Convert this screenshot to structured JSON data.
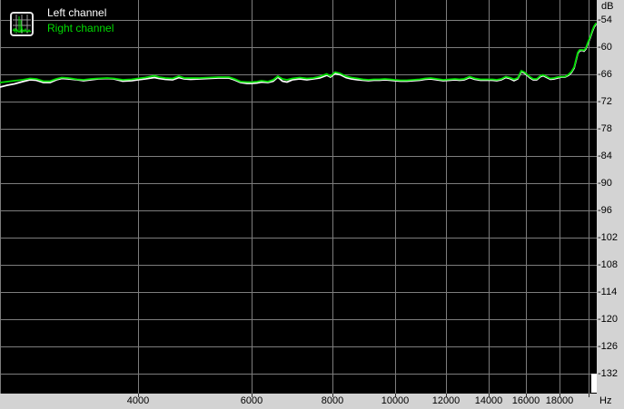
{
  "colors": {
    "plot_background": "#000000",
    "panel_background": "#d3d3d3",
    "gridline": "#7d7d7d",
    "left_channel": "#ffffff",
    "right_channel": "#00dc00",
    "axis_text": "#000000",
    "corner_marker": "#ffffff"
  },
  "legend": {
    "icon": "spectrum-analyzer-icon",
    "items": [
      {
        "label": "Left channel",
        "color": "#ffffff"
      },
      {
        "label": "Right channel",
        "color": "#00dc00"
      }
    ]
  },
  "axes": {
    "y_unit": "dB",
    "x_unit": "Hz",
    "y_ticks": [
      -54,
      -60,
      -66,
      -72,
      -78,
      -84,
      -90,
      -96,
      -102,
      -108,
      -114,
      -120,
      -126,
      -132
    ],
    "x_ticks": [
      4000,
      6000,
      8000,
      10000,
      12000,
      14000,
      16000,
      18000,
      20000
    ],
    "x_tick_labels": [
      "4000",
      "6000",
      "8000",
      "10000",
      "12000",
      "14000",
      "16000",
      "18000",
      ""
    ]
  },
  "chart_data": {
    "type": "line",
    "title": "",
    "xlabel": "Hz",
    "ylabel": "dB",
    "grid": true,
    "legend_position": "top-left",
    "x_axis": {
      "scale": "log",
      "min": 2444,
      "max": 20574
    },
    "y_axis": {
      "min": -136.4,
      "max": -49.6,
      "gridline_step": 6
    },
    "x": [
      2444,
      2508,
      2574,
      2650,
      2720,
      2782,
      2855,
      2921,
      2988,
      3047,
      3117,
      3220,
      3294,
      3381,
      3470,
      3584,
      3667,
      3787,
      3910,
      4000,
      4105,
      4241,
      4310,
      4409,
      4524,
      4628,
      4719,
      4827,
      4987,
      5152,
      5322,
      5409,
      5533,
      5642,
      5771,
      5903,
      6000,
      6117,
      6217,
      6360,
      6485,
      6591,
      6698,
      6807,
      6941,
      7123,
      7310,
      7477,
      7648,
      7849,
      7951,
      8080,
      8240,
      8401,
      8566,
      8762,
      8934,
      9109,
      9287,
      9469,
      9655,
      9844,
      10000,
      10208,
      10443,
      10684,
      10930,
      11146,
      11364,
      11625,
      11891,
      12164,
      12402,
      12606,
      12813,
      13065,
      13322,
      13584,
      13894,
      14168,
      14399,
      14634,
      14873,
      15068,
      15314,
      15515,
      15719,
      15924,
      16184,
      16396,
      16610,
      16827,
      16993,
      17215,
      17440,
      17668,
      17899,
      18133,
      18370,
      18610,
      18792,
      18976,
      19099,
      19223,
      19348,
      19537,
      19663,
      19791,
      19984,
      20113,
      20244,
      20375,
      20507
    ],
    "series": [
      {
        "name": "Left channel",
        "color": "#ffffff",
        "db": [
          -68.8,
          -68.4,
          -68.1,
          -67.6,
          -67.2,
          -67.3,
          -67.8,
          -67.8,
          -67.2,
          -66.9,
          -67.0,
          -67.2,
          -67.4,
          -67.2,
          -67.0,
          -66.9,
          -67.0,
          -67.5,
          -67.4,
          -67.2,
          -67.0,
          -66.7,
          -66.9,
          -67.1,
          -67.2,
          -66.7,
          -67.0,
          -67.1,
          -67.0,
          -66.9,
          -66.8,
          -66.8,
          -66.8,
          -67.2,
          -67.8,
          -68.0,
          -68.0,
          -67.9,
          -67.7,
          -67.8,
          -67.5,
          -66.6,
          -67.5,
          -67.7,
          -67.2,
          -67.0,
          -67.2,
          -67.0,
          -66.8,
          -66.2,
          -66.6,
          -65.8,
          -66.1,
          -66.7,
          -67.0,
          -67.2,
          -67.3,
          -67.4,
          -67.3,
          -67.3,
          -67.2,
          -67.3,
          -67.4,
          -67.5,
          -67.5,
          -67.4,
          -67.3,
          -67.1,
          -67.0,
          -67.2,
          -67.4,
          -67.3,
          -67.2,
          -67.3,
          -67.2,
          -66.7,
          -67.1,
          -67.3,
          -67.3,
          -67.3,
          -67.4,
          -67.2,
          -66.7,
          -66.9,
          -67.4,
          -67.0,
          -65.4,
          -65.8,
          -66.7,
          -67.2,
          -67.2,
          -66.5,
          -66.3,
          -66.7,
          -67.1,
          -67.0,
          -66.8,
          -66.6,
          -66.6,
          -66.2,
          -65.6,
          -64.6,
          -63.0,
          -61.4,
          -60.8,
          -60.7,
          -60.9,
          -60.4,
          -58.8,
          -57.8,
          -56.6,
          -55.6,
          -55.0
        ]
      },
      {
        "name": "Right channel",
        "color": "#00dc00",
        "db": [
          -67.8,
          -67.6,
          -67.4,
          -67.2,
          -66.9,
          -67.0,
          -67.5,
          -67.5,
          -67.0,
          -66.7,
          -66.8,
          -67.1,
          -67.2,
          -67.0,
          -66.9,
          -66.8,
          -66.9,
          -67.2,
          -67.1,
          -66.9,
          -66.7,
          -66.3,
          -66.6,
          -66.8,
          -66.9,
          -66.4,
          -66.8,
          -66.8,
          -66.8,
          -66.7,
          -66.6,
          -66.6,
          -66.6,
          -67.0,
          -67.6,
          -67.7,
          -67.7,
          -67.6,
          -67.4,
          -67.6,
          -67.2,
          -66.4,
          -67.0,
          -67.2,
          -66.9,
          -66.7,
          -66.9,
          -66.8,
          -66.5,
          -65.9,
          -66.4,
          -65.5,
          -65.8,
          -66.4,
          -66.7,
          -66.9,
          -67.1,
          -67.2,
          -67.1,
          -67.1,
          -67.0,
          -67.1,
          -67.2,
          -67.3,
          -67.3,
          -67.2,
          -67.1,
          -66.9,
          -66.8,
          -67.0,
          -67.2,
          -67.1,
          -67.0,
          -67.1,
          -67.0,
          -66.5,
          -66.9,
          -67.1,
          -67.1,
          -67.1,
          -67.2,
          -67.0,
          -66.5,
          -66.7,
          -67.1,
          -66.8,
          -65.2,
          -65.6,
          -66.5,
          -67.0,
          -67.0,
          -66.3,
          -66.1,
          -66.5,
          -66.9,
          -66.8,
          -66.6,
          -66.5,
          -66.5,
          -66.0,
          -65.4,
          -64.4,
          -62.8,
          -61.2,
          -60.6,
          -60.6,
          -60.7,
          -60.2,
          -58.6,
          -57.6,
          -56.4,
          -55.4,
          -54.8
        ]
      }
    ]
  }
}
